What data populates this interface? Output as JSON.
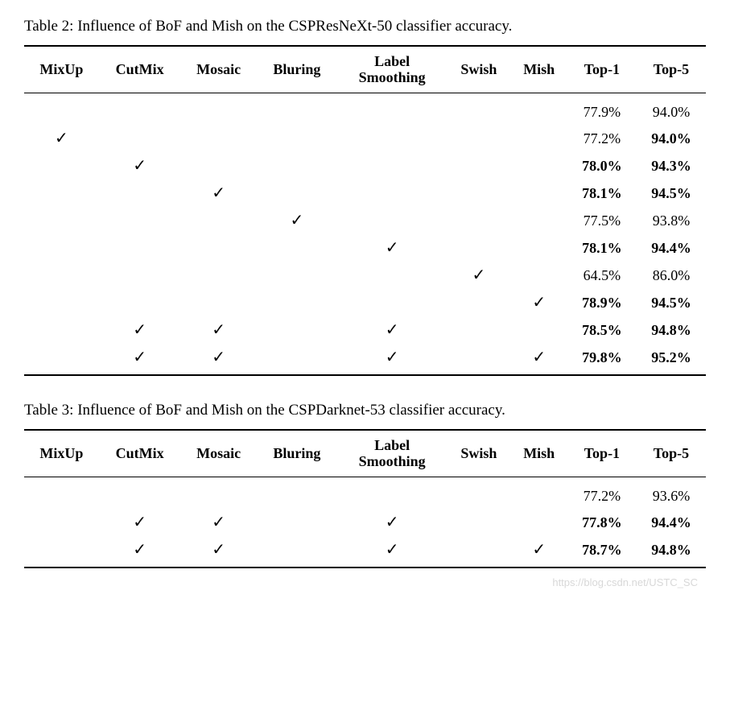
{
  "table2": {
    "caption": "Table 2: Influence of BoF and Mish on the CSPResNeXt-50 classifier accuracy.",
    "columns": [
      "MixUp",
      "CutMix",
      "Mosaic",
      "Bluring",
      "Label Smoothing",
      "Swish",
      "Mish",
      "Top-1",
      "Top-5"
    ],
    "rows": [
      {
        "checks": [
          false,
          false,
          false,
          false,
          false,
          false,
          false
        ],
        "top1": "77.9%",
        "top1_bold": false,
        "top5": "94.0%",
        "top5_bold": false
      },
      {
        "checks": [
          true,
          false,
          false,
          false,
          false,
          false,
          false
        ],
        "top1": "77.2%",
        "top1_bold": false,
        "top5": "94.0%",
        "top5_bold": true
      },
      {
        "checks": [
          false,
          true,
          false,
          false,
          false,
          false,
          false
        ],
        "top1": "78.0%",
        "top1_bold": true,
        "top5": "94.3%",
        "top5_bold": true
      },
      {
        "checks": [
          false,
          false,
          true,
          false,
          false,
          false,
          false
        ],
        "top1": "78.1%",
        "top1_bold": true,
        "top5": "94.5%",
        "top5_bold": true
      },
      {
        "checks": [
          false,
          false,
          false,
          true,
          false,
          false,
          false
        ],
        "top1": "77.5%",
        "top1_bold": false,
        "top5": "93.8%",
        "top5_bold": false
      },
      {
        "checks": [
          false,
          false,
          false,
          false,
          true,
          false,
          false
        ],
        "top1": "78.1%",
        "top1_bold": true,
        "top5": "94.4%",
        "top5_bold": true
      },
      {
        "checks": [
          false,
          false,
          false,
          false,
          false,
          true,
          false
        ],
        "top1": "64.5%",
        "top1_bold": false,
        "top5": "86.0%",
        "top5_bold": false
      },
      {
        "checks": [
          false,
          false,
          false,
          false,
          false,
          false,
          true
        ],
        "top1": "78.9%",
        "top1_bold": true,
        "top5": "94.5%",
        "top5_bold": true
      },
      {
        "checks": [
          false,
          true,
          true,
          false,
          true,
          false,
          false
        ],
        "top1": "78.5%",
        "top1_bold": true,
        "top5": "94.8%",
        "top5_bold": true
      },
      {
        "checks": [
          false,
          true,
          true,
          false,
          true,
          false,
          true
        ],
        "top1": "79.8%",
        "top1_bold": true,
        "top5": "95.2%",
        "top5_bold": true
      }
    ]
  },
  "table3": {
    "caption": "Table 3: Influence of BoF and Mish on the CSPDarknet-53 classifier accuracy.",
    "columns": [
      "MixUp",
      "CutMix",
      "Mosaic",
      "Bluring",
      "Label Smoothing",
      "Swish",
      "Mish",
      "Top-1",
      "Top-5"
    ],
    "rows": [
      {
        "checks": [
          false,
          false,
          false,
          false,
          false,
          false,
          false
        ],
        "top1": "77.2%",
        "top1_bold": false,
        "top5": "93.6%",
        "top5_bold": false
      },
      {
        "checks": [
          false,
          true,
          true,
          false,
          true,
          false,
          false
        ],
        "top1": "77.8%",
        "top1_bold": true,
        "top5": "94.4%",
        "top5_bold": true
      },
      {
        "checks": [
          false,
          true,
          true,
          false,
          true,
          false,
          true
        ],
        "top1": "78.7%",
        "top1_bold": true,
        "top5": "94.8%",
        "top5_bold": true
      }
    ]
  },
  "checkmark": "✓",
  "label_line1": "Label",
  "label_line2": "Smoothing",
  "watermark": "https://blog.csdn.net/USTC_SC"
}
